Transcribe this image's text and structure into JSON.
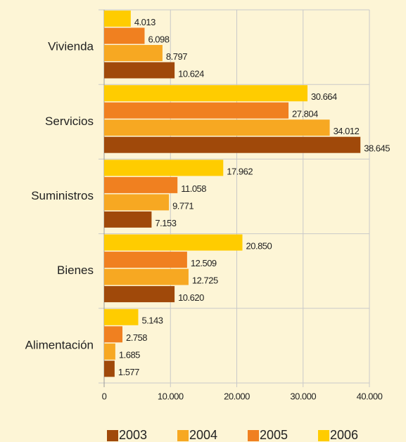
{
  "chart_data": {
    "type": "bar",
    "orientation": "horizontal",
    "categories": [
      "Vivienda",
      "Servicios",
      "Suministros",
      "Bienes",
      "Alimentación"
    ],
    "series": [
      {
        "name": "2003",
        "color": "#a0490a",
        "values": [
          10624,
          38645,
          7153,
          10620,
          1577
        ],
        "value_labels": [
          "10.624",
          "38.645",
          "7.153",
          "10.620",
          "1.577"
        ]
      },
      {
        "name": "2004",
        "color": "#f7a822",
        "values": [
          8797,
          34012,
          9771,
          12725,
          1685
        ],
        "value_labels": [
          "8.797",
          "34.012",
          "9.771",
          "12.725",
          "1.685"
        ]
      },
      {
        "name": "2005",
        "color": "#f08020",
        "values": [
          6098,
          27804,
          11058,
          12509,
          2758
        ],
        "value_labels": [
          "6.098",
          "27.804",
          "11.058",
          "12.509",
          "2.758"
        ]
      },
      {
        "name": "2006",
        "color": "#ffcc00",
        "values": [
          4013,
          30664,
          17962,
          20850,
          5143
        ],
        "value_labels": [
          "4.013",
          "30.664",
          "17.962",
          "20.850",
          "5.143"
        ]
      }
    ],
    "xlim": [
      0,
      40000
    ],
    "xticks": [
      0,
      {
        "value": 10000,
        "label": "10.000"
      },
      {
        "value": 20000,
        "label": "20.000"
      },
      {
        "value": 30000,
        "label": "30.000"
      },
      {
        "value": 40000,
        "label": "40.000"
      }
    ],
    "grid": true,
    "legend": "bottom"
  }
}
